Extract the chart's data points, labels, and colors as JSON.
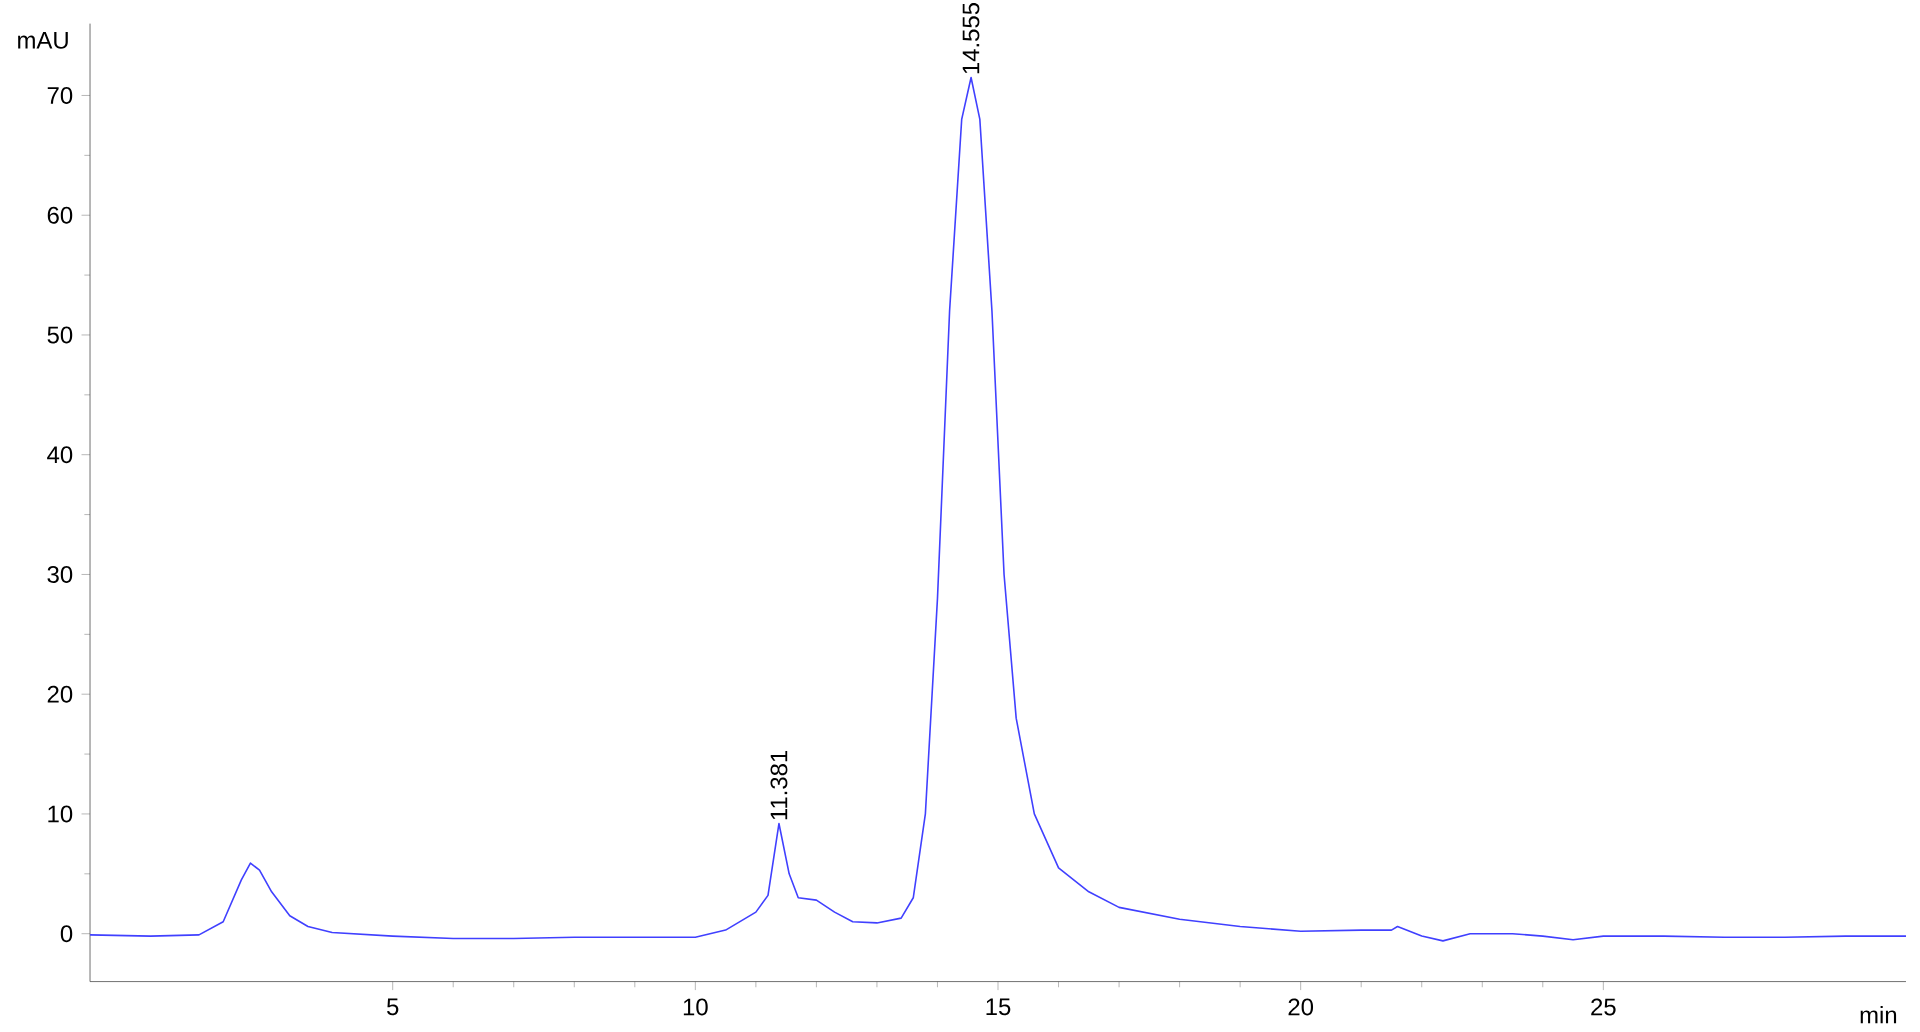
{
  "chart_data": {
    "type": "line",
    "xlabel": "min",
    "ylabel": "mAU",
    "xlim": [
      0,
      30
    ],
    "ylim": [
      -4,
      76
    ],
    "xticks": [
      5,
      10,
      15,
      20,
      25
    ],
    "yticks": [
      0,
      10,
      20,
      30,
      40,
      50,
      60,
      70
    ],
    "grid": false,
    "series": [
      {
        "color": "#4040ff",
        "x": [
          0,
          1,
          1.8,
          2.2,
          2.5,
          2.65,
          2.8,
          3.0,
          3.3,
          3.6,
          4,
          5,
          6,
          7,
          8,
          9,
          10,
          10.5,
          11.0,
          11.2,
          11.381,
          11.55,
          11.7,
          12.0,
          12.3,
          12.6,
          13.0,
          13.4,
          13.6,
          13.8,
          14.0,
          14.2,
          14.4,
          14.555,
          14.7,
          14.9,
          15.1,
          15.3,
          15.6,
          16.0,
          16.5,
          17,
          18,
          19,
          20,
          21,
          21.5,
          21.6,
          22,
          22.35,
          22.8,
          23.5,
          24,
          24.5,
          25,
          26,
          27,
          28,
          29,
          30
        ],
        "values": [
          -0.1,
          -0.2,
          -0.1,
          1,
          4.5,
          5.9,
          5.3,
          3.5,
          1.5,
          0.6,
          0.1,
          -0.2,
          -0.4,
          -0.4,
          -0.3,
          -0.3,
          -0.3,
          0.3,
          1.8,
          3.2,
          9.2,
          5,
          3.0,
          2.8,
          1.8,
          1.0,
          0.9,
          1.3,
          3,
          10,
          28,
          52,
          68,
          71.5,
          68,
          52,
          30,
          18,
          10,
          5.5,
          3.5,
          2.2,
          1.2,
          0.6,
          0.2,
          0.3,
          0.3,
          0.6,
          -0.2,
          -0.6,
          0,
          0,
          -0.2,
          -0.5,
          -0.2,
          -0.2,
          -0.3,
          -0.3,
          -0.2,
          -0.2
        ]
      }
    ],
    "annotations": [
      {
        "text": "11.381",
        "x": 11.381,
        "y": 9.2
      },
      {
        "text": "14.555",
        "x": 14.555,
        "y": 71.5
      }
    ]
  }
}
